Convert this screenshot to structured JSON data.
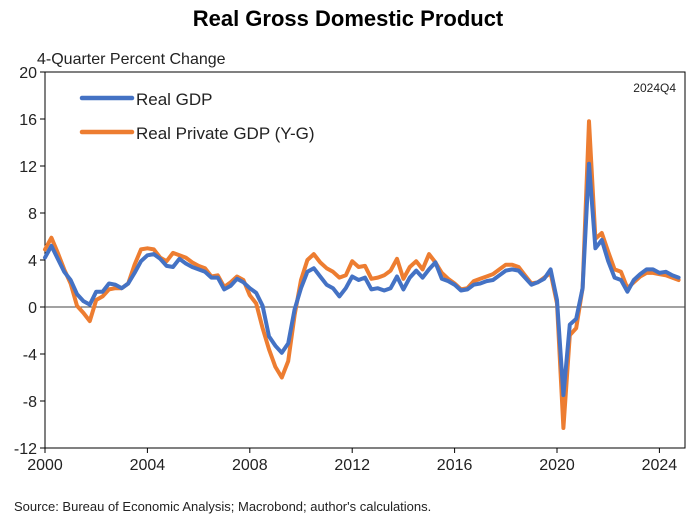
{
  "chart_data": {
    "type": "line",
    "title": "Real Gross Domestic Product",
    "ylabel": "4-Quarter Percent Change",
    "vintage": "2024Q4",
    "source": "Source: Bureau of Economic Analysis; Macrobond; author's calculations.",
    "ylim": [
      -12,
      20
    ],
    "yticks": [
      -12,
      -8,
      -4,
      0,
      4,
      8,
      12,
      16,
      20
    ],
    "xlim": [
      2000,
      2025
    ],
    "xticks": [
      2000,
      2004,
      2008,
      2012,
      2016,
      2020,
      2024
    ],
    "grid": false,
    "legend": "top-left",
    "series": [
      {
        "name": "Real GDP",
        "color": "#4472C4",
        "points": [
          [
            2000.0,
            4.2
          ],
          [
            2000.25,
            5.2
          ],
          [
            2000.5,
            4.1
          ],
          [
            2000.75,
            3.0
          ],
          [
            2001.0,
            2.3
          ],
          [
            2001.25,
            1.1
          ],
          [
            2001.5,
            0.5
          ],
          [
            2001.75,
            0.2
          ],
          [
            2002.0,
            1.3
          ],
          [
            2002.25,
            1.3
          ],
          [
            2002.5,
            2.0
          ],
          [
            2002.75,
            1.9
          ],
          [
            2003.0,
            1.6
          ],
          [
            2003.25,
            2.0
          ],
          [
            2003.5,
            2.9
          ],
          [
            2003.75,
            3.9
          ],
          [
            2004.0,
            4.4
          ],
          [
            2004.25,
            4.5
          ],
          [
            2004.5,
            4.1
          ],
          [
            2004.75,
            3.5
          ],
          [
            2005.0,
            3.4
          ],
          [
            2005.25,
            4.1
          ],
          [
            2005.5,
            3.7
          ],
          [
            2005.75,
            3.4
          ],
          [
            2006.0,
            3.2
          ],
          [
            2006.25,
            3.0
          ],
          [
            2006.5,
            2.5
          ],
          [
            2006.75,
            2.5
          ],
          [
            2007.0,
            1.5
          ],
          [
            2007.25,
            1.8
          ],
          [
            2007.5,
            2.4
          ],
          [
            2007.75,
            2.1
          ],
          [
            2008.0,
            1.6
          ],
          [
            2008.25,
            1.2
          ],
          [
            2008.5,
            0.1
          ],
          [
            2008.75,
            -2.5
          ],
          [
            2009.0,
            -3.3
          ],
          [
            2009.25,
            -3.9
          ],
          [
            2009.5,
            -3.1
          ],
          [
            2009.75,
            -0.2
          ],
          [
            2010.0,
            1.6
          ],
          [
            2010.25,
            3.0
          ],
          [
            2010.5,
            3.3
          ],
          [
            2010.75,
            2.6
          ],
          [
            2011.0,
            1.9
          ],
          [
            2011.25,
            1.6
          ],
          [
            2011.5,
            0.9
          ],
          [
            2011.75,
            1.6
          ],
          [
            2012.0,
            2.6
          ],
          [
            2012.25,
            2.3
          ],
          [
            2012.5,
            2.5
          ],
          [
            2012.75,
            1.5
          ],
          [
            2013.0,
            1.6
          ],
          [
            2013.25,
            1.4
          ],
          [
            2013.5,
            1.6
          ],
          [
            2013.75,
            2.6
          ],
          [
            2014.0,
            1.5
          ],
          [
            2014.25,
            2.5
          ],
          [
            2014.5,
            3.1
          ],
          [
            2014.75,
            2.5
          ],
          [
            2015.0,
            3.2
          ],
          [
            2015.25,
            3.8
          ],
          [
            2015.5,
            2.4
          ],
          [
            2015.75,
            2.2
          ],
          [
            2016.0,
            1.9
          ],
          [
            2016.25,
            1.4
          ],
          [
            2016.5,
            1.5
          ],
          [
            2016.75,
            1.9
          ],
          [
            2017.0,
            2.0
          ],
          [
            2017.25,
            2.2
          ],
          [
            2017.5,
            2.3
          ],
          [
            2017.75,
            2.7
          ],
          [
            2018.0,
            3.1
          ],
          [
            2018.25,
            3.2
          ],
          [
            2018.5,
            3.1
          ],
          [
            2018.75,
            2.5
          ],
          [
            2019.0,
            1.9
          ],
          [
            2019.25,
            2.1
          ],
          [
            2019.5,
            2.4
          ],
          [
            2019.75,
            3.2
          ],
          [
            2020.0,
            0.6
          ],
          [
            2020.25,
            -7.5
          ],
          [
            2020.5,
            -1.5
          ],
          [
            2020.75,
            -1.0
          ],
          [
            2021.0,
            1.6
          ],
          [
            2021.25,
            12.2
          ],
          [
            2021.5,
            5.0
          ],
          [
            2021.75,
            5.7
          ],
          [
            2022.0,
            3.9
          ],
          [
            2022.25,
            2.5
          ],
          [
            2022.5,
            2.3
          ],
          [
            2022.75,
            1.3
          ],
          [
            2023.0,
            2.3
          ],
          [
            2023.25,
            2.8
          ],
          [
            2023.5,
            3.2
          ],
          [
            2023.75,
            3.2
          ],
          [
            2024.0,
            2.9
          ],
          [
            2024.25,
            3.0
          ],
          [
            2024.5,
            2.7
          ],
          [
            2024.75,
            2.5
          ]
        ]
      },
      {
        "name": "Real Private GDP (Y-G)",
        "color": "#ED7D31",
        "points": [
          [
            2000.0,
            4.9
          ],
          [
            2000.25,
            5.9
          ],
          [
            2000.5,
            4.6
          ],
          [
            2000.75,
            3.2
          ],
          [
            2001.0,
            2.0
          ],
          [
            2001.25,
            0.1
          ],
          [
            2001.5,
            -0.5
          ],
          [
            2001.75,
            -1.2
          ],
          [
            2002.0,
            0.6
          ],
          [
            2002.25,
            0.9
          ],
          [
            2002.5,
            1.5
          ],
          [
            2002.75,
            1.6
          ],
          [
            2003.0,
            1.6
          ],
          [
            2003.25,
            2.0
          ],
          [
            2003.5,
            3.6
          ],
          [
            2003.75,
            4.9
          ],
          [
            2004.0,
            5.0
          ],
          [
            2004.25,
            4.9
          ],
          [
            2004.5,
            4.2
          ],
          [
            2004.75,
            3.9
          ],
          [
            2005.0,
            4.6
          ],
          [
            2005.25,
            4.4
          ],
          [
            2005.5,
            4.2
          ],
          [
            2005.75,
            3.8
          ],
          [
            2006.0,
            3.5
          ],
          [
            2006.25,
            3.3
          ],
          [
            2006.5,
            2.6
          ],
          [
            2006.75,
            2.7
          ],
          [
            2007.0,
            1.7
          ],
          [
            2007.25,
            2.1
          ],
          [
            2007.5,
            2.6
          ],
          [
            2007.75,
            2.3
          ],
          [
            2008.0,
            1.0
          ],
          [
            2008.25,
            0.3
          ],
          [
            2008.5,
            -1.8
          ],
          [
            2008.75,
            -3.6
          ],
          [
            2009.0,
            -5.1
          ],
          [
            2009.25,
            -6.0
          ],
          [
            2009.5,
            -4.6
          ],
          [
            2009.75,
            -0.7
          ],
          [
            2010.0,
            2.3
          ],
          [
            2010.25,
            4.0
          ],
          [
            2010.5,
            4.5
          ],
          [
            2010.75,
            3.8
          ],
          [
            2011.0,
            3.3
          ],
          [
            2011.25,
            3.0
          ],
          [
            2011.5,
            2.5
          ],
          [
            2011.75,
            2.7
          ],
          [
            2012.0,
            3.9
          ],
          [
            2012.25,
            3.4
          ],
          [
            2012.5,
            3.5
          ],
          [
            2012.75,
            2.4
          ],
          [
            2013.0,
            2.5
          ],
          [
            2013.25,
            2.7
          ],
          [
            2013.5,
            3.1
          ],
          [
            2013.75,
            4.1
          ],
          [
            2014.0,
            2.4
          ],
          [
            2014.25,
            3.4
          ],
          [
            2014.5,
            3.9
          ],
          [
            2014.75,
            3.2
          ],
          [
            2015.0,
            4.5
          ],
          [
            2015.25,
            3.8
          ],
          [
            2015.5,
            2.9
          ],
          [
            2015.75,
            2.4
          ],
          [
            2016.0,
            2.0
          ],
          [
            2016.25,
            1.5
          ],
          [
            2016.5,
            1.6
          ],
          [
            2016.75,
            2.2
          ],
          [
            2017.0,
            2.4
          ],
          [
            2017.25,
            2.6
          ],
          [
            2017.5,
            2.8
          ],
          [
            2017.75,
            3.2
          ],
          [
            2018.0,
            3.6
          ],
          [
            2018.25,
            3.6
          ],
          [
            2018.5,
            3.4
          ],
          [
            2018.75,
            2.7
          ],
          [
            2019.0,
            2.0
          ],
          [
            2019.25,
            2.1
          ],
          [
            2019.5,
            2.5
          ],
          [
            2019.75,
            2.9
          ],
          [
            2020.0,
            0.3
          ],
          [
            2020.25,
            -10.3
          ],
          [
            2020.5,
            -2.4
          ],
          [
            2020.75,
            -1.8
          ],
          [
            2021.0,
            1.6
          ],
          [
            2021.25,
            15.8
          ],
          [
            2021.5,
            5.8
          ],
          [
            2021.75,
            6.3
          ],
          [
            2022.0,
            4.7
          ],
          [
            2022.25,
            3.2
          ],
          [
            2022.5,
            3.0
          ],
          [
            2022.75,
            1.6
          ],
          [
            2023.0,
            2.1
          ],
          [
            2023.25,
            2.6
          ],
          [
            2023.5,
            2.9
          ],
          [
            2023.75,
            2.9
          ],
          [
            2024.0,
            2.8
          ],
          [
            2024.25,
            2.7
          ],
          [
            2024.5,
            2.5
          ],
          [
            2024.75,
            2.3
          ]
        ]
      }
    ]
  }
}
